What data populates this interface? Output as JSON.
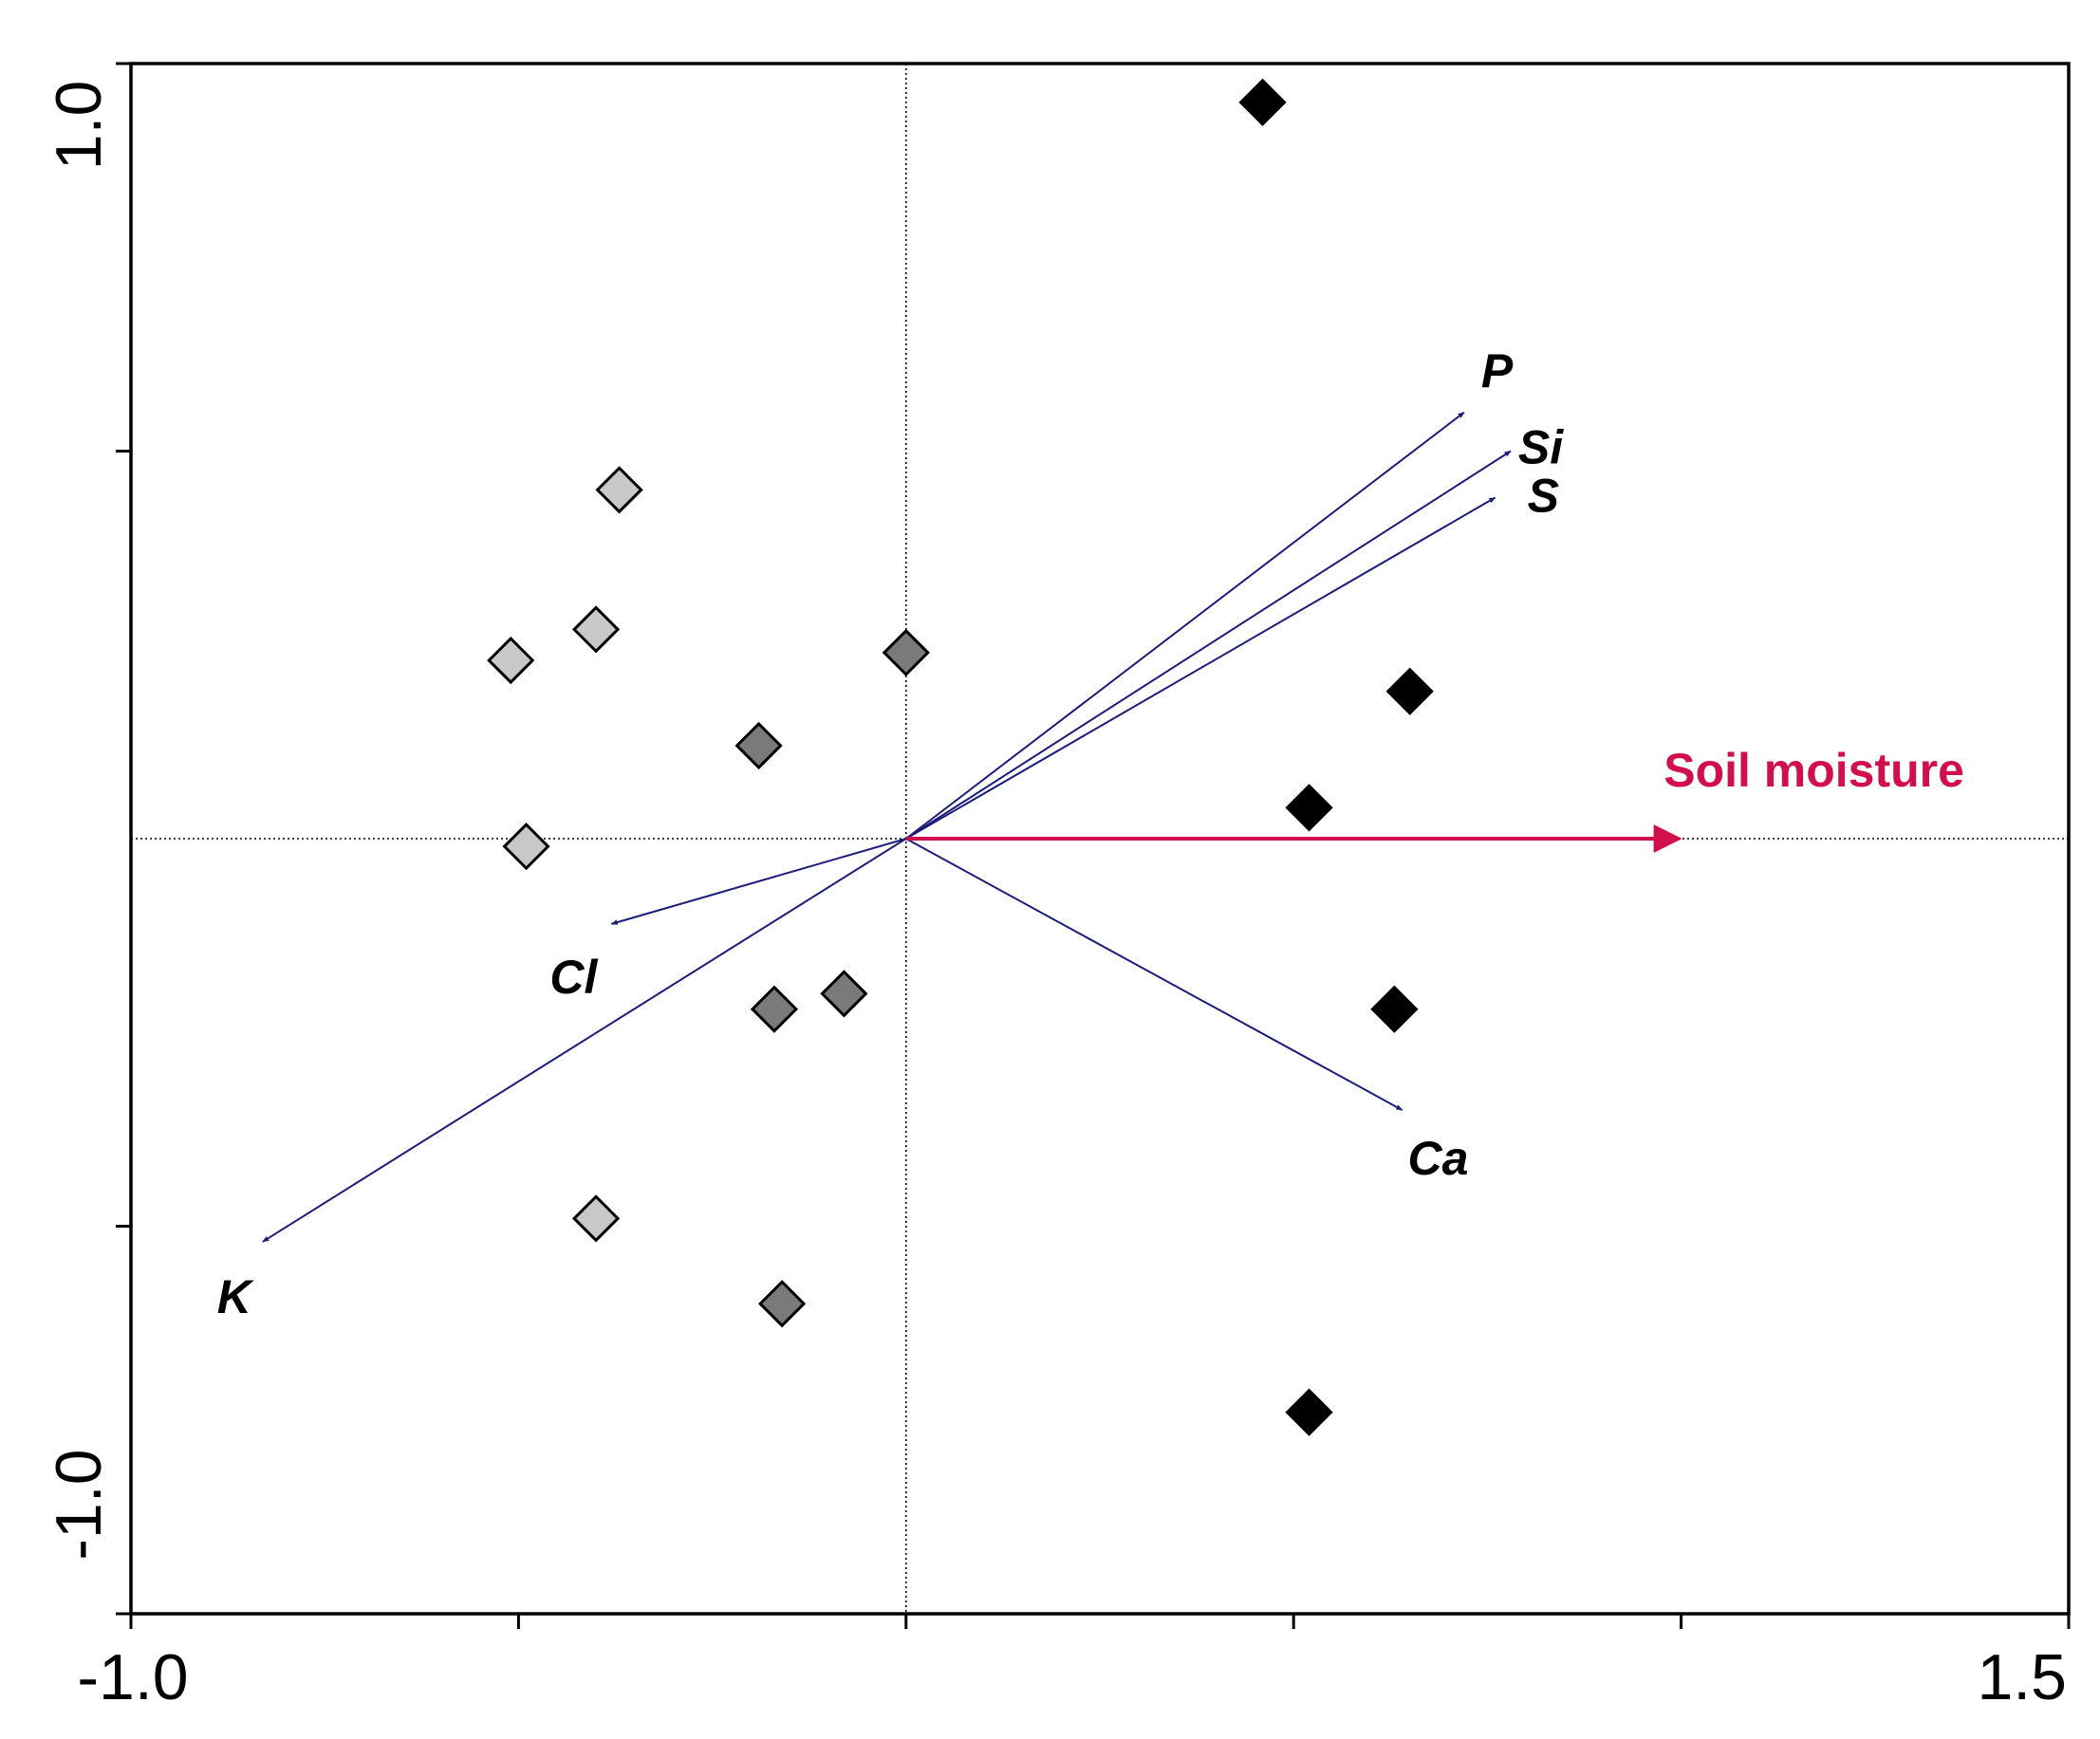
{
  "chart_data": {
    "type": "scatter",
    "title": "",
    "xlabel": "",
    "ylabel": "",
    "xlim": [
      -1.0,
      1.5
    ],
    "ylim": [
      -1.0,
      1.0
    ],
    "x_tick_labels": [
      {
        "value": -1.0,
        "label": "-1.0"
      },
      {
        "value": 1.5,
        "label": "1.5"
      }
    ],
    "y_tick_labels": [
      {
        "value": 1.0,
        "label": "1.0"
      },
      {
        "value": -1.0,
        "label": "-1.0"
      }
    ],
    "x_minor_ticks": [
      -0.5,
      0.0,
      0.5,
      1.0
    ],
    "y_minor_ticks": [
      0.5,
      -0.5
    ],
    "reference_lines": {
      "x": 0,
      "y": 0,
      "style": "dotted"
    },
    "series": [
      {
        "color": "#c8c8c8",
        "marker": "diamond",
        "points": [
          [
            -0.37,
            0.45
          ],
          [
            -0.4,
            0.27
          ],
          [
            -0.51,
            0.23
          ],
          [
            -0.49,
            -0.01
          ],
          [
            -0.4,
            -0.49
          ]
        ]
      },
      {
        "color": "#7a7a7a",
        "marker": "diamond",
        "points": [
          [
            0.0,
            0.24
          ],
          [
            -0.19,
            0.12
          ],
          [
            -0.17,
            -0.22
          ],
          [
            -0.08,
            -0.2
          ],
          [
            -0.16,
            -0.6
          ]
        ]
      },
      {
        "color": "#000000",
        "marker": "diamond",
        "points": [
          [
            0.46,
            0.95
          ],
          [
            0.65,
            0.19
          ],
          [
            0.52,
            0.04
          ],
          [
            0.63,
            -0.22
          ],
          [
            0.52,
            -0.74
          ]
        ]
      }
    ],
    "vectors": [
      {
        "label": "P",
        "x": 0.72,
        "y": 0.55,
        "color": "#1c1c7a"
      },
      {
        "label": "Si",
        "x": 0.78,
        "y": 0.5,
        "color": "#1c1c7a"
      },
      {
        "label": "S",
        "x": 0.76,
        "y": 0.44,
        "color": "#1c1c7a"
      },
      {
        "label": "Ca",
        "x": 0.64,
        "y": -0.35,
        "color": "#1c1c7a"
      },
      {
        "label": "Cl",
        "x": -0.38,
        "y": -0.11,
        "color": "#1c1c7a"
      },
      {
        "label": "K",
        "x": -0.83,
        "y": -0.52,
        "color": "#1c1c7a"
      }
    ],
    "environmental_vectors": [
      {
        "label": "Soil moisture",
        "x": 1.0,
        "y": 0.0,
        "color": "#d0104a"
      }
    ]
  }
}
